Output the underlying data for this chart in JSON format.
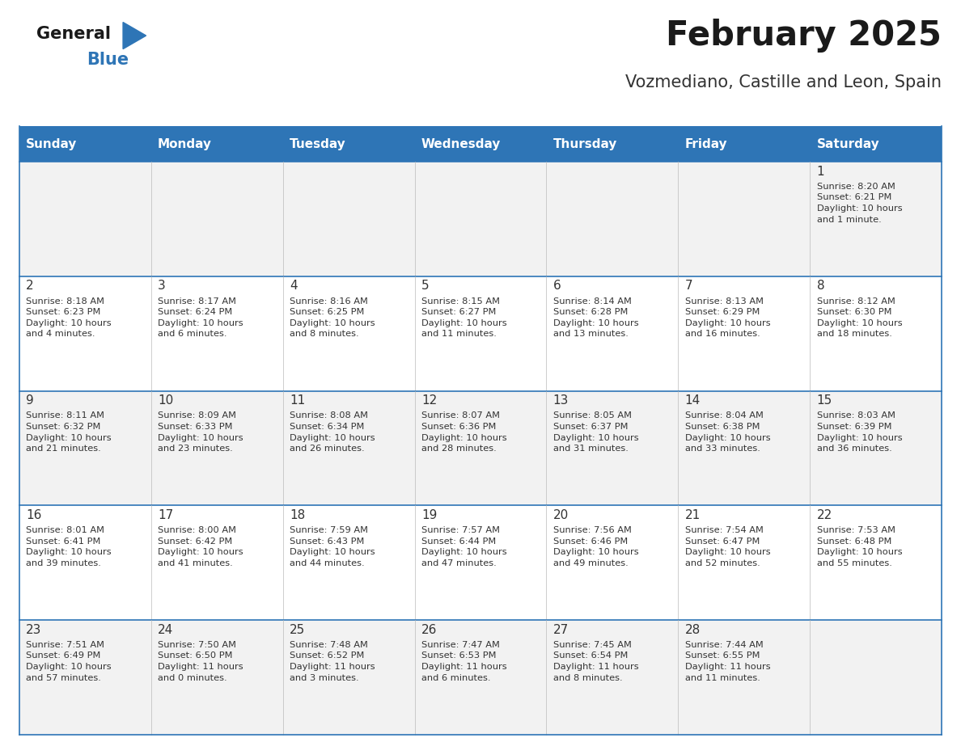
{
  "title": "February 2025",
  "subtitle": "Vozmediano, Castille and Leon, Spain",
  "header_bg": "#2E75B6",
  "header_text_color": "#FFFFFF",
  "days_of_week": [
    "Sunday",
    "Monday",
    "Tuesday",
    "Wednesday",
    "Thursday",
    "Friday",
    "Saturday"
  ],
  "row_bg_odd": "#F2F2F2",
  "row_bg_even": "#FFFFFF",
  "cell_text_color": "#333333",
  "grid_line_color": "#2E75B6",
  "calendar": [
    [
      {
        "day": "",
        "info": ""
      },
      {
        "day": "",
        "info": ""
      },
      {
        "day": "",
        "info": ""
      },
      {
        "day": "",
        "info": ""
      },
      {
        "day": "",
        "info": ""
      },
      {
        "day": "",
        "info": ""
      },
      {
        "day": "1",
        "info": "Sunrise: 8:20 AM\nSunset: 6:21 PM\nDaylight: 10 hours\nand 1 minute."
      }
    ],
    [
      {
        "day": "2",
        "info": "Sunrise: 8:18 AM\nSunset: 6:23 PM\nDaylight: 10 hours\nand 4 minutes."
      },
      {
        "day": "3",
        "info": "Sunrise: 8:17 AM\nSunset: 6:24 PM\nDaylight: 10 hours\nand 6 minutes."
      },
      {
        "day": "4",
        "info": "Sunrise: 8:16 AM\nSunset: 6:25 PM\nDaylight: 10 hours\nand 8 minutes."
      },
      {
        "day": "5",
        "info": "Sunrise: 8:15 AM\nSunset: 6:27 PM\nDaylight: 10 hours\nand 11 minutes."
      },
      {
        "day": "6",
        "info": "Sunrise: 8:14 AM\nSunset: 6:28 PM\nDaylight: 10 hours\nand 13 minutes."
      },
      {
        "day": "7",
        "info": "Sunrise: 8:13 AM\nSunset: 6:29 PM\nDaylight: 10 hours\nand 16 minutes."
      },
      {
        "day": "8",
        "info": "Sunrise: 8:12 AM\nSunset: 6:30 PM\nDaylight: 10 hours\nand 18 minutes."
      }
    ],
    [
      {
        "day": "9",
        "info": "Sunrise: 8:11 AM\nSunset: 6:32 PM\nDaylight: 10 hours\nand 21 minutes."
      },
      {
        "day": "10",
        "info": "Sunrise: 8:09 AM\nSunset: 6:33 PM\nDaylight: 10 hours\nand 23 minutes."
      },
      {
        "day": "11",
        "info": "Sunrise: 8:08 AM\nSunset: 6:34 PM\nDaylight: 10 hours\nand 26 minutes."
      },
      {
        "day": "12",
        "info": "Sunrise: 8:07 AM\nSunset: 6:36 PM\nDaylight: 10 hours\nand 28 minutes."
      },
      {
        "day": "13",
        "info": "Sunrise: 8:05 AM\nSunset: 6:37 PM\nDaylight: 10 hours\nand 31 minutes."
      },
      {
        "day": "14",
        "info": "Sunrise: 8:04 AM\nSunset: 6:38 PM\nDaylight: 10 hours\nand 33 minutes."
      },
      {
        "day": "15",
        "info": "Sunrise: 8:03 AM\nSunset: 6:39 PM\nDaylight: 10 hours\nand 36 minutes."
      }
    ],
    [
      {
        "day": "16",
        "info": "Sunrise: 8:01 AM\nSunset: 6:41 PM\nDaylight: 10 hours\nand 39 minutes."
      },
      {
        "day": "17",
        "info": "Sunrise: 8:00 AM\nSunset: 6:42 PM\nDaylight: 10 hours\nand 41 minutes."
      },
      {
        "day": "18",
        "info": "Sunrise: 7:59 AM\nSunset: 6:43 PM\nDaylight: 10 hours\nand 44 minutes."
      },
      {
        "day": "19",
        "info": "Sunrise: 7:57 AM\nSunset: 6:44 PM\nDaylight: 10 hours\nand 47 minutes."
      },
      {
        "day": "20",
        "info": "Sunrise: 7:56 AM\nSunset: 6:46 PM\nDaylight: 10 hours\nand 49 minutes."
      },
      {
        "day": "21",
        "info": "Sunrise: 7:54 AM\nSunset: 6:47 PM\nDaylight: 10 hours\nand 52 minutes."
      },
      {
        "day": "22",
        "info": "Sunrise: 7:53 AM\nSunset: 6:48 PM\nDaylight: 10 hours\nand 55 minutes."
      }
    ],
    [
      {
        "day": "23",
        "info": "Sunrise: 7:51 AM\nSunset: 6:49 PM\nDaylight: 10 hours\nand 57 minutes."
      },
      {
        "day": "24",
        "info": "Sunrise: 7:50 AM\nSunset: 6:50 PM\nDaylight: 11 hours\nand 0 minutes."
      },
      {
        "day": "25",
        "info": "Sunrise: 7:48 AM\nSunset: 6:52 PM\nDaylight: 11 hours\nand 3 minutes."
      },
      {
        "day": "26",
        "info": "Sunrise: 7:47 AM\nSunset: 6:53 PM\nDaylight: 11 hours\nand 6 minutes."
      },
      {
        "day": "27",
        "info": "Sunrise: 7:45 AM\nSunset: 6:54 PM\nDaylight: 11 hours\nand 8 minutes."
      },
      {
        "day": "28",
        "info": "Sunrise: 7:44 AM\nSunset: 6:55 PM\nDaylight: 11 hours\nand 11 minutes."
      },
      {
        "day": "",
        "info": ""
      }
    ]
  ]
}
